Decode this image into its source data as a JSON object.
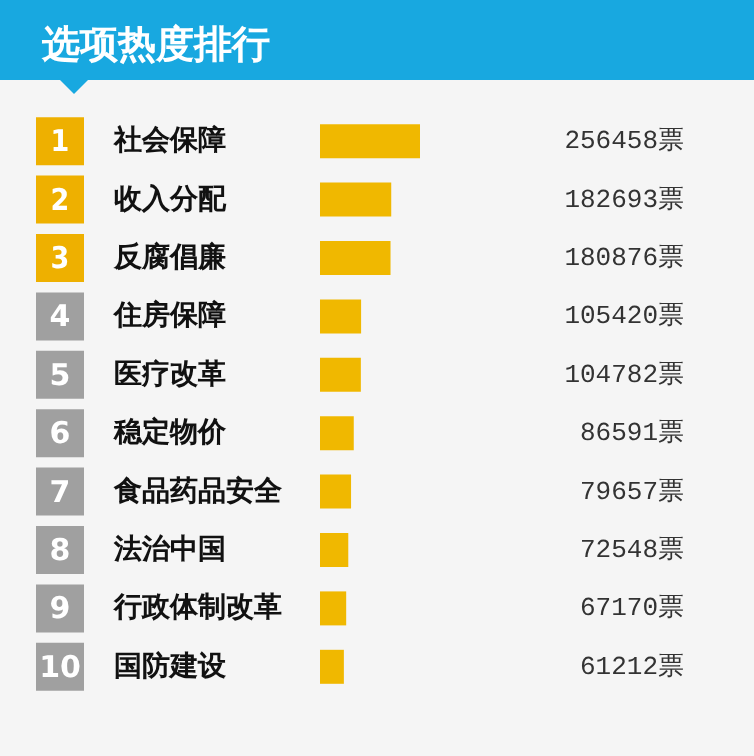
{
  "chart_data": {
    "type": "bar",
    "orientation": "horizontal",
    "title": "选项热度排行",
    "categories": [
      "社会保障",
      "收入分配",
      "反腐倡廉",
      "住房保障",
      "医疗改革",
      "稳定物价",
      "食品药品安全",
      "法治中国",
      "行政体制改革",
      "国防建设"
    ],
    "values": [
      256458,
      182693,
      180876,
      105420,
      104782,
      86591,
      79657,
      72548,
      67170,
      61212
    ],
    "value_labels": [
      "256458票",
      "182693票",
      "180876票",
      "105420票",
      "104782票",
      "86591票",
      "79657票",
      "72548票",
      "67170票",
      "61212票"
    ],
    "color": "#f0b800",
    "annotations": [
      "1",
      "2",
      "3",
      "4",
      "5",
      "6",
      "7",
      "8",
      "9",
      "10"
    ]
  }
}
